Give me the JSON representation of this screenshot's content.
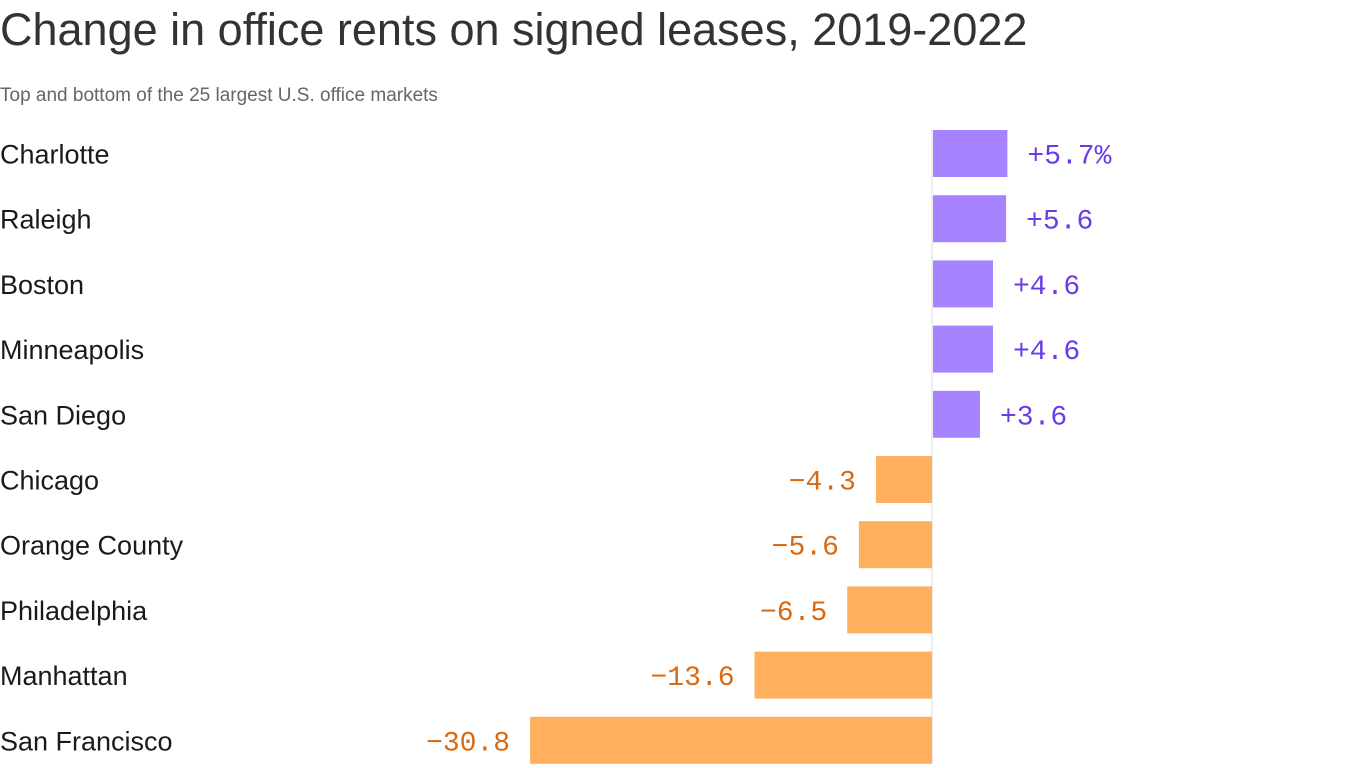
{
  "header": {
    "title": "Change in office rents on signed leases, 2019-2022",
    "subtitle": "Top and bottom of the 25 largest U.S. office markets"
  },
  "colors": {
    "positive_bar": "#A783FF",
    "positive_text": "#6B3BE8",
    "negative_bar": "#FFAF5E",
    "negative_text": "#D9680F",
    "axis": "#DDDDDD"
  },
  "chart_data": {
    "type": "bar",
    "orientation": "horizontal",
    "title": "Change in office rents on signed leases, 2019-2022",
    "subtitle": "Top and bottom of the 25 largest U.S. office markets",
    "xlabel": "",
    "ylabel": "",
    "unit": "%",
    "grid": false,
    "baseline": 0,
    "categories": [
      "Charlotte",
      "Raleigh",
      "Boston",
      "Minneapolis",
      "San Diego",
      "Chicago",
      "Orange County",
      "Philadelphia",
      "Manhattan",
      "San Francisco"
    ],
    "values": [
      5.7,
      5.6,
      4.6,
      4.6,
      3.6,
      -4.3,
      -5.6,
      -6.5,
      -13.6,
      -30.8
    ],
    "value_labels": [
      "+5.7%",
      "+5.6",
      "+4.6",
      "+4.6",
      "+3.6",
      "−4.3",
      "−5.6",
      "−6.5",
      "−13.6",
      "−30.8"
    ]
  }
}
